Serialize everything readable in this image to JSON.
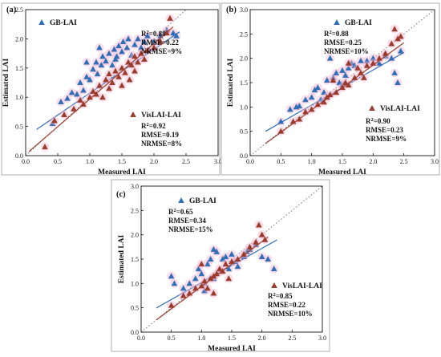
{
  "chart_data": [
    {
      "type": "scatter",
      "panel_label": "(a)",
      "xlabel": "Measured LAI",
      "ylabel": "Estimated LAI",
      "xlim": [
        0.0,
        3.0
      ],
      "ylim": [
        0.0,
        2.5
      ],
      "xticks": [
        "0.0",
        "0.5",
        "1.0",
        "1.5",
        "2.0",
        "2.5",
        "3.0"
      ],
      "yticks": [
        "0.0",
        "0.5",
        "1.0",
        "1.5",
        "2.0",
        "2.5"
      ],
      "one_to_one_line": true,
      "series": [
        {
          "name": "GB-LAI",
          "color": "#2f6fb8",
          "stats": [
            "R²=0.88",
            "RMSE=0.22",
            "NRMSE=9%"
          ],
          "fit": {
            "slope": 0.75,
            "intercept": 0.32
          },
          "points": [
            [
              0.42,
              0.55
            ],
            [
              0.55,
              0.92
            ],
            [
              0.65,
              0.98
            ],
            [
              0.72,
              1.08
            ],
            [
              0.8,
              1.05
            ],
            [
              0.85,
              1.25
            ],
            [
              0.9,
              1.12
            ],
            [
              0.95,
              1.35
            ],
            [
              1.0,
              1.3
            ],
            [
              1.05,
              1.48
            ],
            [
              1.1,
              1.6
            ],
            [
              1.12,
              1.4
            ],
            [
              1.18,
              1.55
            ],
            [
              1.2,
              1.7
            ],
            [
              1.25,
              1.62
            ],
            [
              1.3,
              1.75
            ],
            [
              1.35,
              1.55
            ],
            [
              1.38,
              1.82
            ],
            [
              1.42,
              1.7
            ],
            [
              1.45,
              1.88
            ],
            [
              1.5,
              1.78
            ],
            [
              1.52,
              1.95
            ],
            [
              1.58,
              1.85
            ],
            [
              1.6,
              2.0
            ],
            [
              1.65,
              1.72
            ],
            [
              1.7,
              1.9
            ],
            [
              1.75,
              2.0
            ],
            [
              1.8,
              1.85
            ],
            [
              1.85,
              1.95
            ],
            [
              1.9,
              2.05
            ],
            [
              2.0,
              1.95
            ],
            [
              2.1,
              2.05
            ],
            [
              2.2,
              2.15
            ],
            [
              2.3,
              2.1
            ],
            [
              2.35,
              2.05
            ],
            [
              0.95,
              1.6
            ],
            [
              1.15,
              1.85
            ],
            [
              1.4,
              1.65
            ]
          ]
        },
        {
          "name": "VisLAI-LAI",
          "color": "#9b3b2c",
          "stats": [
            "R²=0.92",
            "RMSE=0.19",
            "NRMSE=8%"
          ],
          "fit": {
            "slope": 0.95,
            "intercept": 0.02
          },
          "points": [
            [
              0.3,
              0.15
            ],
            [
              0.45,
              0.6
            ],
            [
              0.6,
              0.7
            ],
            [
              0.75,
              0.8
            ],
            [
              0.85,
              0.95
            ],
            [
              0.9,
              0.88
            ],
            [
              1.0,
              1.0
            ],
            [
              1.05,
              1.1
            ],
            [
              1.1,
              1.05
            ],
            [
              1.15,
              1.2
            ],
            [
              1.2,
              1.0
            ],
            [
              1.25,
              1.3
            ],
            [
              1.3,
              1.4
            ],
            [
              1.35,
              1.25
            ],
            [
              1.4,
              1.45
            ],
            [
              1.45,
              1.35
            ],
            [
              1.5,
              1.5
            ],
            [
              1.55,
              1.42
            ],
            [
              1.6,
              1.6
            ],
            [
              1.62,
              1.3
            ],
            [
              1.65,
              1.55
            ],
            [
              1.7,
              1.7
            ],
            [
              1.75,
              1.6
            ],
            [
              1.8,
              1.75
            ],
            [
              1.85,
              1.65
            ],
            [
              1.9,
              1.8
            ],
            [
              2.0,
              1.85
            ],
            [
              2.1,
              1.95
            ],
            [
              2.2,
              2.1
            ],
            [
              2.25,
              2.35
            ],
            [
              1.5,
              1.2
            ],
            [
              1.7,
              1.45
            ],
            [
              1.3,
              1.15
            ]
          ]
        }
      ]
    },
    {
      "type": "scatter",
      "panel_label": "(b)",
      "xlabel": "Measured LAI",
      "ylabel": "Estimated LAI",
      "xlim": [
        0.0,
        3.0
      ],
      "ylim": [
        0.0,
        3.0
      ],
      "xticks": [
        "0.0",
        "0.5",
        "1.0",
        "1.5",
        "2.0",
        "2.5",
        "3.0"
      ],
      "yticks": [
        "0.0",
        "0.5",
        "1.0",
        "1.5",
        "2.0",
        "2.5",
        "3.0"
      ],
      "one_to_one_line": true,
      "series": [
        {
          "name": "GB-LAI",
          "color": "#2f6fb8",
          "stats": [
            "R²=0.88",
            "RMSE=0.25",
            "NRMSE=10%"
          ],
          "fit": {
            "slope": 0.72,
            "intercept": 0.32
          },
          "points": [
            [
              0.5,
              0.7
            ],
            [
              0.65,
              0.95
            ],
            [
              0.75,
              1.0
            ],
            [
              0.8,
              1.02
            ],
            [
              0.9,
              1.15
            ],
            [
              1.0,
              1.2
            ],
            [
              1.05,
              1.35
            ],
            [
              1.1,
              1.4
            ],
            [
              1.2,
              1.3
            ],
            [
              1.25,
              1.55
            ],
            [
              1.3,
              2.0
            ],
            [
              1.35,
              1.6
            ],
            [
              1.4,
              1.7
            ],
            [
              1.45,
              1.5
            ],
            [
              1.5,
              1.75
            ],
            [
              1.55,
              1.65
            ],
            [
              1.6,
              1.8
            ],
            [
              1.65,
              1.9
            ],
            [
              1.7,
              1.85
            ],
            [
              1.8,
              1.95
            ],
            [
              1.9,
              1.95
            ],
            [
              2.0,
              2.0
            ],
            [
              2.1,
              1.9
            ],
            [
              2.2,
              2.05
            ],
            [
              2.3,
              2.0
            ],
            [
              2.35,
              1.7
            ],
            [
              2.4,
              1.5
            ],
            [
              2.45,
              2.15
            ],
            [
              1.15,
              1.15
            ],
            [
              1.5,
              1.45
            ]
          ]
        },
        {
          "name": "VisLAI-LAI",
          "color": "#9b3b2c",
          "stats": [
            "R²=0.90",
            "RMSE=0.23",
            "NRMSE=9%"
          ],
          "fit": {
            "slope": 0.92,
            "intercept": 0.02
          },
          "points": [
            [
              0.5,
              0.5
            ],
            [
              0.7,
              0.7
            ],
            [
              0.8,
              0.75
            ],
            [
              0.9,
              0.9
            ],
            [
              1.0,
              0.95
            ],
            [
              1.1,
              1.05
            ],
            [
              1.2,
              1.1
            ],
            [
              1.25,
              1.2
            ],
            [
              1.3,
              1.25
            ],
            [
              1.4,
              1.3
            ],
            [
              1.5,
              1.4
            ],
            [
              1.55,
              1.5
            ],
            [
              1.6,
              1.45
            ],
            [
              1.7,
              1.6
            ],
            [
              1.75,
              1.8
            ],
            [
              1.8,
              1.7
            ],
            [
              1.9,
              1.85
            ],
            [
              2.0,
              1.9
            ],
            [
              2.1,
              2.0
            ],
            [
              2.2,
              2.1
            ],
            [
              2.3,
              2.3
            ],
            [
              2.35,
              2.6
            ],
            [
              2.4,
              2.4
            ],
            [
              2.45,
              2.45
            ],
            [
              1.6,
              1.9
            ],
            [
              1.35,
              1.55
            ],
            [
              1.85,
              1.6
            ]
          ]
        }
      ]
    },
    {
      "type": "scatter",
      "panel_label": "(c)",
      "xlabel": "Measured LAI",
      "ylabel": "Estimated LAI",
      "xlim": [
        0.0,
        3.0
      ],
      "ylim": [
        0.0,
        3.0
      ],
      "xticks": [
        "0.0",
        "0.5",
        "1.0",
        "1.5",
        "2.0",
        "2.5",
        "3.0"
      ],
      "yticks": [
        "0.0",
        "0.5",
        "1.0",
        "1.5",
        "2.0",
        "2.5",
        "3.0"
      ],
      "one_to_one_line": true,
      "series": [
        {
          "name": "GB-LAI",
          "color": "#2f6fb8",
          "stats": [
            "R²=0.65",
            "RMSE=0.34",
            "NRMSE=15%"
          ],
          "fit": {
            "slope": 0.7,
            "intercept": 0.32
          },
          "points": [
            [
              0.5,
              1.15
            ],
            [
              0.55,
              1.0
            ],
            [
              0.7,
              0.9
            ],
            [
              0.8,
              1.0
            ],
            [
              0.9,
              1.1
            ],
            [
              0.95,
              1.3
            ],
            [
              1.0,
              1.2
            ],
            [
              1.05,
              1.0
            ],
            [
              1.1,
              1.4
            ],
            [
              1.15,
              1.5
            ],
            [
              1.2,
              1.7
            ],
            [
              1.25,
              1.65
            ],
            [
              1.3,
              1.25
            ],
            [
              1.35,
              1.5
            ],
            [
              1.4,
              1.55
            ],
            [
              1.5,
              1.6
            ],
            [
              1.55,
              1.45
            ],
            [
              1.6,
              1.35
            ],
            [
              1.7,
              1.55
            ],
            [
              1.75,
              1.65
            ],
            [
              1.8,
              1.7
            ],
            [
              1.9,
              1.8
            ],
            [
              2.0,
              1.55
            ],
            [
              2.1,
              1.5
            ],
            [
              2.2,
              1.3
            ],
            [
              1.05,
              0.85
            ],
            [
              1.2,
              1.1
            ],
            [
              1.45,
              1.3
            ]
          ]
        },
        {
          "name": "VisLAI-LAI",
          "color": "#9b3b2c",
          "stats": [
            "R²=0.85",
            "RMSE=0.22",
            "NRMSE=10%"
          ],
          "fit": {
            "slope": 0.92,
            "intercept": 0.02
          },
          "points": [
            [
              0.5,
              0.55
            ],
            [
              0.7,
              0.75
            ],
            [
              0.8,
              0.8
            ],
            [
              0.9,
              0.9
            ],
            [
              1.0,
              0.95
            ],
            [
              1.05,
              1.05
            ],
            [
              1.1,
              0.9
            ],
            [
              1.15,
              1.1
            ],
            [
              1.2,
              1.15
            ],
            [
              1.25,
              1.2
            ],
            [
              1.3,
              1.3
            ],
            [
              1.35,
              1.25
            ],
            [
              1.4,
              1.4
            ],
            [
              1.5,
              1.45
            ],
            [
              1.6,
              1.5
            ],
            [
              1.7,
              1.6
            ],
            [
              1.8,
              1.75
            ],
            [
              1.9,
              1.85
            ],
            [
              1.95,
              2.2
            ],
            [
              2.0,
              2.0
            ],
            [
              2.05,
              1.9
            ],
            [
              1.0,
              1.4
            ],
            [
              1.2,
              0.8
            ],
            [
              1.45,
              1.1
            ]
          ]
        }
      ]
    }
  ]
}
